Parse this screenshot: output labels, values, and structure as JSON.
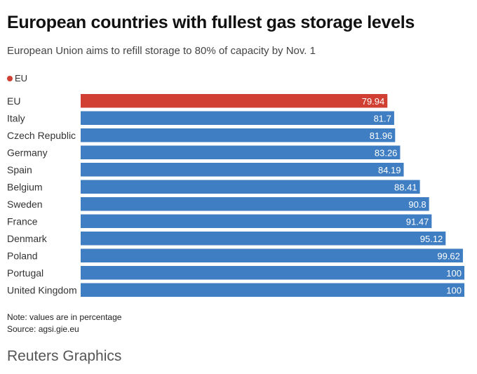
{
  "header": {
    "title": "European countries with fullest gas storage levels",
    "subtitle": "European Union aims to refill storage to 80% of capacity by Nov. 1"
  },
  "legend": {
    "label": "EU",
    "color": "#d13f32"
  },
  "colors": {
    "highlight": "#d13f32",
    "bar": "#3f7ec2"
  },
  "chart_data": {
    "type": "bar",
    "orientation": "horizontal",
    "title": "European countries with fullest gas storage levels",
    "subtitle": "European Union aims to refill storage to 80% of capacity by Nov. 1",
    "categories": [
      "EU",
      "Italy",
      "Czech Republic",
      "Germany",
      "Spain",
      "Belgium",
      "Sweden",
      "France",
      "Denmark",
      "Poland",
      "Portugal",
      "United Kingdom"
    ],
    "values": [
      79.94,
      81.7,
      81.96,
      83.26,
      84.19,
      88.41,
      90.8,
      91.47,
      95.12,
      99.62,
      100,
      100
    ],
    "value_labels": [
      "79.94",
      "81.7",
      "81.96",
      "83.26",
      "84.19",
      "88.41",
      "90.8",
      "91.47",
      "95.12",
      "99.62",
      "100",
      "100"
    ],
    "highlight": [
      "EU"
    ],
    "xlim": [
      0,
      100
    ],
    "xlabel": "",
    "ylabel": "",
    "grid": false,
    "legend": "top-left"
  },
  "footer": {
    "note": "Note: values are in percentage",
    "source": "Source: agsi.gie.eu",
    "brand": "Reuters Graphics"
  }
}
